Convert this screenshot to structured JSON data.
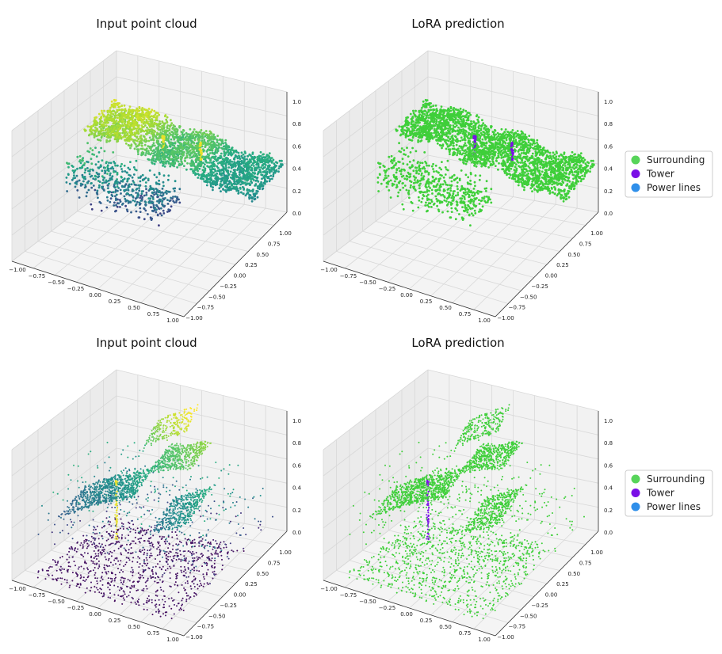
{
  "chart_data": [
    {
      "type": "scatter",
      "title": "Input point cloud",
      "projection": "3d",
      "colormap": "viridis",
      "x_ticks": [
        "−1.00",
        "−0.75",
        "−0.50",
        "−0.25",
        "0.00",
        "0.25",
        "0.50",
        "0.75",
        "1.00"
      ],
      "y_ticks": [
        "1.00",
        "0.75",
        "0.50",
        "0.25",
        "0.00",
        "−0.25",
        "−0.50",
        "−0.75",
        "−1.00"
      ],
      "z_ticks": [
        "0.0",
        "0.2",
        "0.4",
        "0.6",
        "0.8",
        "1.0"
      ],
      "xlim": [
        -1,
        1
      ],
      "ylim": [
        -1,
        1
      ],
      "zlim": [
        0,
        1
      ],
      "grid": true
    },
    {
      "type": "scatter",
      "title": "LoRA prediction",
      "projection": "3d",
      "x_ticks": [
        "−1.00",
        "−0.75",
        "−0.50",
        "−0.25",
        "0.00",
        "0.25",
        "0.50",
        "0.75",
        "1.00"
      ],
      "y_ticks": [
        "1.00",
        "0.75",
        "0.50",
        "0.25",
        "0.00",
        "−0.25",
        "−0.50",
        "−0.75",
        "−1.00"
      ],
      "z_ticks": [
        "0.0",
        "0.2",
        "0.4",
        "0.6",
        "0.8",
        "1.0"
      ],
      "xlim": [
        -1,
        1
      ],
      "ylim": [
        -1,
        1
      ],
      "zlim": [
        0,
        1
      ],
      "grid": true,
      "legend_position": "right",
      "series": [
        {
          "name": "Surrounding",
          "color": "#57d45a"
        },
        {
          "name": "Tower",
          "color": "#7a0fe6"
        },
        {
          "name": "Power lines",
          "color": "#2f8fea"
        }
      ]
    },
    {
      "type": "scatter",
      "title": "Input point cloud",
      "projection": "3d",
      "colormap": "viridis",
      "x_ticks": [
        "−1.00",
        "−0.75",
        "−0.50",
        "−0.25",
        "0.00",
        "0.25",
        "0.50",
        "0.75",
        "1.00"
      ],
      "y_ticks": [
        "1.00",
        "0.75",
        "0.50",
        "0.25",
        "0.00",
        "−0.25",
        "−0.50",
        "−0.75",
        "−1.00"
      ],
      "z_ticks": [
        "0.0",
        "0.2",
        "0.4",
        "0.6",
        "0.8",
        "1.0"
      ],
      "xlim": [
        -1,
        1
      ],
      "ylim": [
        -1,
        1
      ],
      "zlim": [
        0,
        1
      ],
      "grid": true
    },
    {
      "type": "scatter",
      "title": "LoRA prediction",
      "projection": "3d",
      "x_ticks": [
        "−1.00",
        "−0.75",
        "−0.50",
        "−0.25",
        "0.00",
        "0.25",
        "0.50",
        "0.75",
        "1.00"
      ],
      "y_ticks": [
        "1.00",
        "0.75",
        "0.50",
        "0.25",
        "0.00",
        "−0.25",
        "−0.50",
        "−0.75",
        "−1.00"
      ],
      "z_ticks": [
        "0.0",
        "0.2",
        "0.4",
        "0.6",
        "0.8",
        "1.0"
      ],
      "xlim": [
        -1,
        1
      ],
      "ylim": [
        -1,
        1
      ],
      "zlim": [
        0,
        1
      ],
      "grid": true,
      "legend_position": "right",
      "series": [
        {
          "name": "Surrounding",
          "color": "#57d45a"
        },
        {
          "name": "Tower",
          "color": "#7a0fe6"
        },
        {
          "name": "Power lines",
          "color": "#2f8fea"
        }
      ]
    }
  ]
}
